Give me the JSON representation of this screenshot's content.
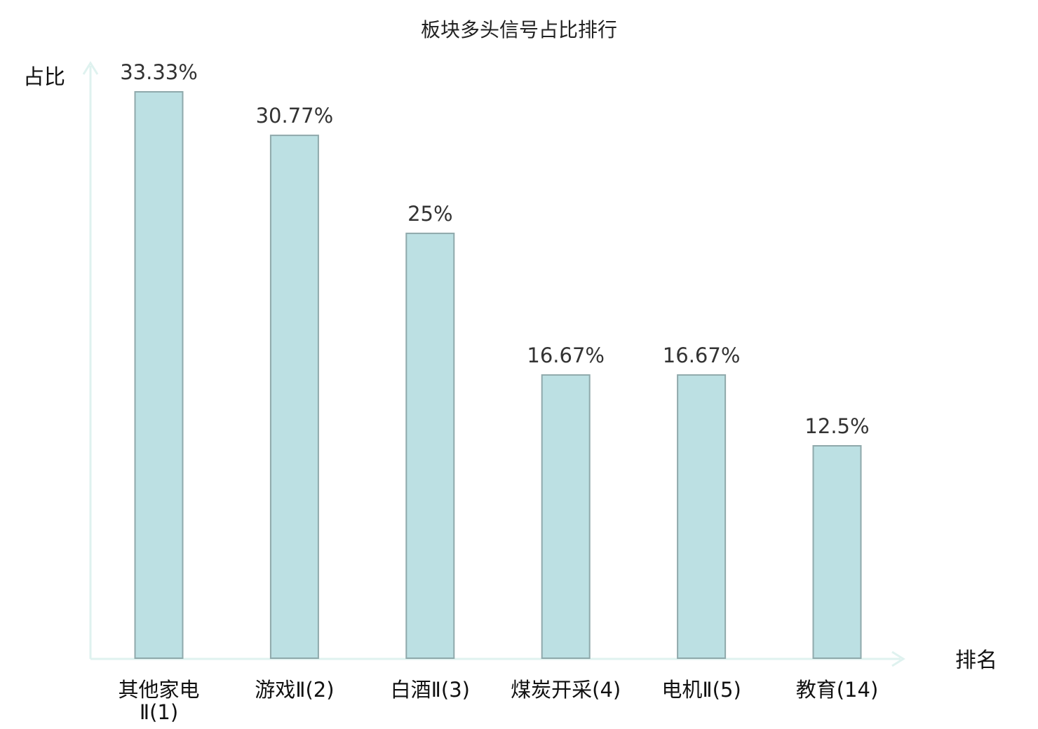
{
  "chart_data": {
    "type": "bar",
    "title": "板块多头信号占比排行",
    "ylabel": "占比",
    "xlabel": "排名",
    "categories": [
      [
        "其他家电",
        "Ⅱ(1)"
      ],
      [
        "游戏Ⅱ(2)"
      ],
      [
        "白酒Ⅱ(3)"
      ],
      [
        "煤炭开采(4)"
      ],
      [
        "电机Ⅱ(5)"
      ],
      [
        "教育(14)"
      ]
    ],
    "values": [
      33.33,
      30.77,
      25,
      16.67,
      16.67,
      12.5
    ],
    "value_labels": [
      "33.33%",
      "30.77%",
      "25%",
      "16.67%",
      "16.67%",
      "12.5%"
    ],
    "highlight_index": 5,
    "ylim": [
      0,
      33.33
    ],
    "grid": false,
    "colors": {
      "bar_fill": "#bce0e3",
      "bar_stroke": "#8fa9ab",
      "axis": "#dff2ef",
      "highlight_label": "#e0201c",
      "label": "#111111",
      "value_label": "#333333"
    }
  }
}
